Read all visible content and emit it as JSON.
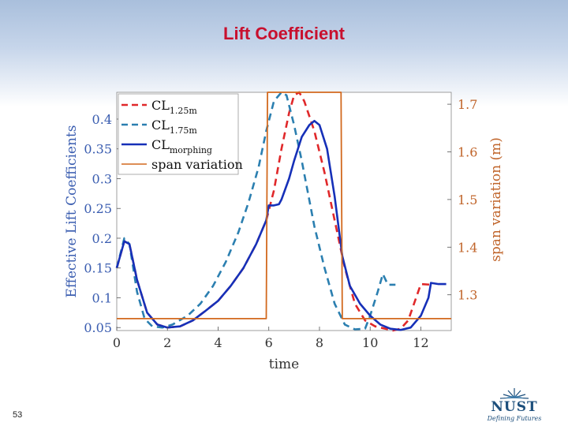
{
  "slide": {
    "title": "Lift Coefficient",
    "number": "53"
  },
  "logo": {
    "name": "NUST",
    "tagline": "Defining Futures"
  },
  "colors": {
    "cl125": "#e0282a",
    "cl175": "#2b7fb0",
    "morph": "#1630b8",
    "span": "#d2691e",
    "title": "#c8102e",
    "leftAxis": "#3a5db0",
    "rightAxis": "#c0642a"
  },
  "chart_data": {
    "type": "line",
    "xlabel": "time",
    "ylabel": "Effective Lift Coefficients",
    "y2label": "span variation (m)",
    "xlim": [
      0,
      13.2
    ],
    "ylim": [
      0.045,
      0.445
    ],
    "y2lim": [
      1.225,
      1.725
    ],
    "xticks": [
      0,
      2,
      4,
      6,
      8,
      10,
      12
    ],
    "yticks": [
      0.05,
      0.1,
      0.15,
      0.2,
      0.25,
      0.3,
      0.35,
      0.4
    ],
    "y2ticks": [
      1.3,
      1.4,
      1.5,
      1.6,
      1.7
    ],
    "legend": {
      "placement": "top-left",
      "entries": [
        {
          "main": "CL",
          "sub": "1.25m",
          "series": "cl125"
        },
        {
          "main": "CL",
          "sub": "1.75m",
          "series": "cl175"
        },
        {
          "main": "CL",
          "sub": "morphing",
          "series": "morph"
        },
        {
          "main": "span variation",
          "sub": "",
          "series": "span"
        }
      ]
    },
    "series": [
      {
        "id": "cl125",
        "axis": "left",
        "style": "dashed",
        "x": [
          0,
          0.3,
          0.5,
          0.8,
          1.2,
          1.6,
          2.0,
          2.5,
          3.0,
          3.5,
          4.0,
          4.5,
          5.0,
          5.5,
          5.9,
          6.2,
          6.5,
          6.8,
          7.0,
          7.2,
          7.4,
          7.8,
          8.2,
          8.6,
          9.0,
          9.4,
          9.8,
          10.2,
          10.6,
          10.9,
          11.2,
          11.5,
          12.0,
          12.4
        ],
        "y": [
          0.15,
          0.195,
          0.19,
          0.13,
          0.075,
          0.055,
          0.05,
          0.052,
          0.062,
          0.078,
          0.095,
          0.12,
          0.15,
          0.19,
          0.23,
          0.28,
          0.35,
          0.41,
          0.44,
          0.445,
          0.43,
          0.38,
          0.31,
          0.23,
          0.15,
          0.09,
          0.062,
          0.052,
          0.048,
          0.045,
          0.048,
          0.062,
          0.123,
          0.122
        ]
      },
      {
        "id": "cl175",
        "axis": "left",
        "style": "dashed",
        "x": [
          0,
          0.3,
          0.5,
          0.8,
          1.1,
          1.4,
          1.8,
          2.2,
          2.8,
          3.3,
          3.8,
          4.3,
          4.8,
          5.2,
          5.6,
          5.9,
          6.2,
          6.5,
          6.7,
          7.0,
          7.3,
          7.8,
          8.2,
          8.6,
          9.0,
          9.4,
          9.8,
          10.0,
          10.3,
          10.5,
          10.7,
          11.0
        ],
        "y": [
          0.15,
          0.2,
          0.19,
          0.11,
          0.065,
          0.052,
          0.05,
          0.055,
          0.07,
          0.09,
          0.12,
          0.16,
          0.21,
          0.26,
          0.32,
          0.38,
          0.43,
          0.445,
          0.44,
          0.39,
          0.33,
          0.22,
          0.15,
          0.09,
          0.055,
          0.047,
          0.048,
          0.07,
          0.11,
          0.14,
          0.122,
          0.122
        ]
      },
      {
        "id": "morph",
        "axis": "left",
        "style": "solid",
        "x": [
          0,
          0.3,
          0.5,
          0.8,
          1.2,
          1.6,
          2.0,
          2.5,
          3.0,
          3.5,
          4.0,
          4.5,
          5.0,
          5.5,
          5.9,
          6.0,
          6.2,
          6.4,
          6.5,
          6.8,
          7.0,
          7.3,
          7.6,
          7.8,
          8.0,
          8.3,
          8.6,
          8.9,
          9.2,
          9.6,
          10.0,
          10.4,
          10.8,
          11.2,
          11.6,
          12.0,
          12.3,
          12.4,
          12.7,
          13.0
        ],
        "y": [
          0.15,
          0.195,
          0.19,
          0.13,
          0.075,
          0.055,
          0.05,
          0.052,
          0.062,
          0.078,
          0.095,
          0.12,
          0.15,
          0.19,
          0.23,
          0.255,
          0.255,
          0.257,
          0.265,
          0.3,
          0.33,
          0.37,
          0.39,
          0.397,
          0.39,
          0.35,
          0.27,
          0.17,
          0.12,
          0.09,
          0.07,
          0.055,
          0.048,
          0.046,
          0.05,
          0.07,
          0.1,
          0.125,
          0.123,
          0.123
        ]
      },
      {
        "id": "span",
        "axis": "right",
        "style": "solid",
        "x": [
          0,
          5.9,
          5.95,
          8.85,
          8.9,
          13.2
        ],
        "y": [
          1.25,
          1.25,
          1.75,
          1.75,
          1.25,
          1.25
        ]
      }
    ]
  }
}
